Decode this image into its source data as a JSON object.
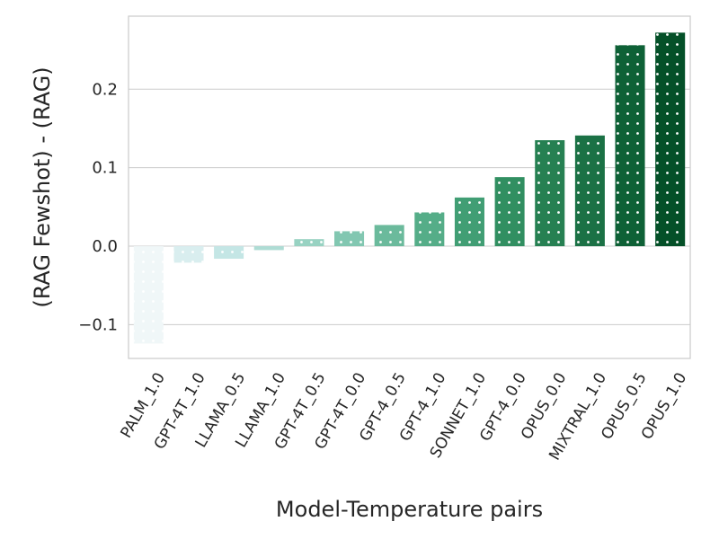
{
  "chart_data": {
    "type": "bar",
    "xlabel": "Model-Temperature pairs",
    "ylabel": "(RAG Fewshot) - (RAG)",
    "ylim": [
      -0.143,
      0.293
    ],
    "yticks": [
      -0.1,
      0.0,
      0.1,
      0.2
    ],
    "ytick_labels": [
      "−0.1",
      "0.0",
      "0.1",
      "0.2"
    ],
    "grid": "horizontal",
    "legend": "none",
    "pattern": "white dots",
    "categories": [
      "PALM_1.0",
      "GPT-4T_1.0",
      "LLAMA_0.5",
      "LLAMA_1.0",
      "GPT-4T_0.5",
      "GPT-4T_0.0",
      "GPT-4_0.5",
      "GPT-4_1.0",
      "SONNET_1.0",
      "GPT-4_0.0",
      "OPUS_0.0",
      "MIXTRAL_1.0",
      "OPUS_0.5",
      "OPUS_1.0"
    ],
    "values": [
      -0.124,
      -0.021,
      -0.016,
      -0.005,
      0.009,
      0.019,
      0.027,
      0.043,
      0.062,
      0.088,
      0.135,
      0.141,
      0.256,
      0.272
    ],
    "colors": [
      "#f0f7f8",
      "#d9eeef",
      "#c4e6e5",
      "#aedcd4",
      "#98d2c2",
      "#82c7b1",
      "#6bba9c",
      "#55ad88",
      "#419e74",
      "#318f61",
      "#268052",
      "#1b7145",
      "#0e6136",
      "#045028"
    ]
  }
}
